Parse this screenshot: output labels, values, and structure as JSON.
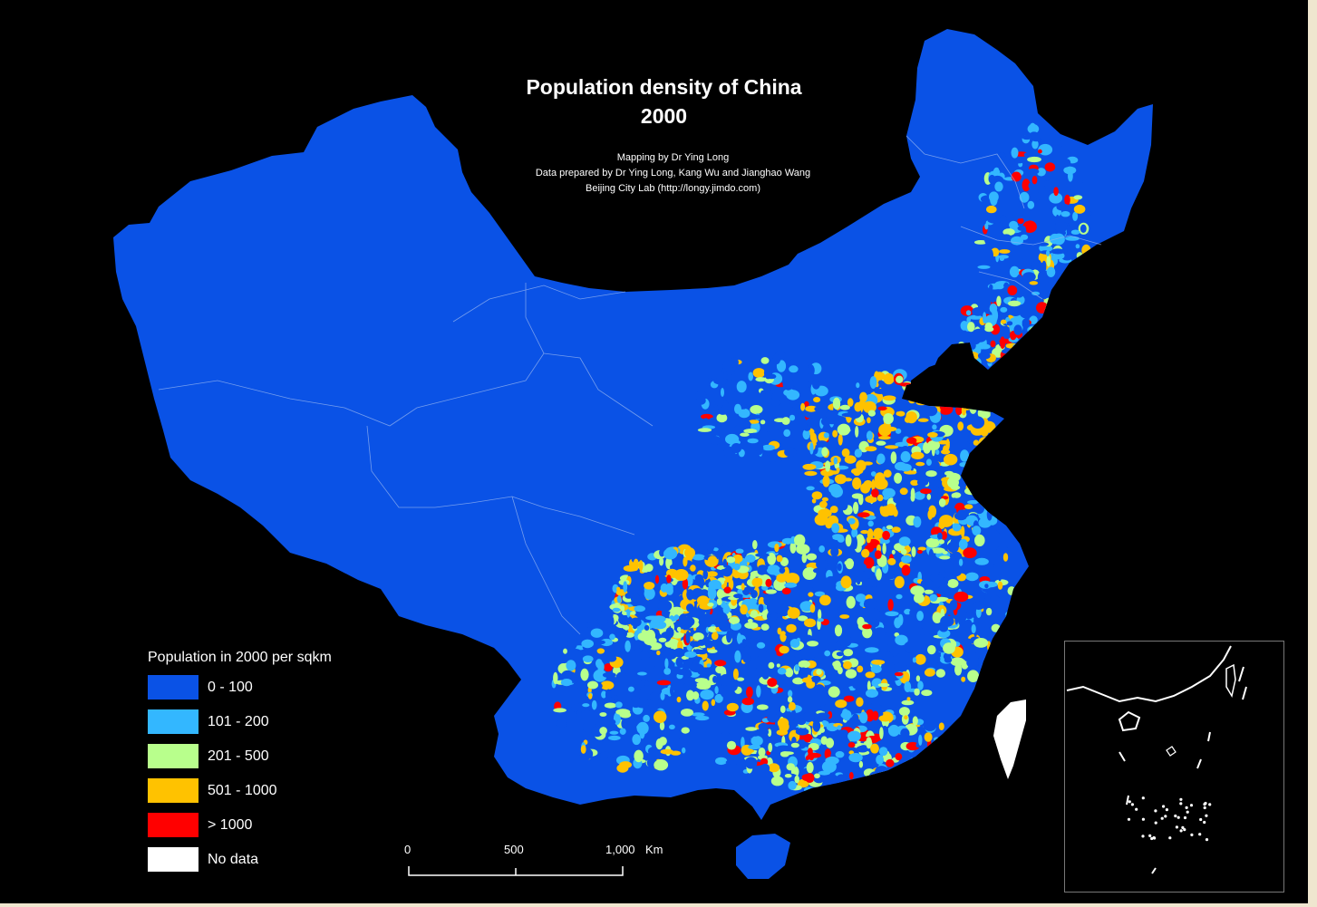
{
  "map": {
    "title_line1": "Population density of China",
    "title_line2": "2000",
    "credits": [
      "Mapping by Dr Ying Long",
      "Data prepared by Dr Ying Long, Kang Wu and Jianghao Wang",
      "Beijing City Lab (http://longy.jimdo.com)"
    ]
  },
  "legend": {
    "title": "Population in 2000 per sqkm",
    "items": [
      {
        "label": "0 - 100",
        "color": "#0a52e6"
      },
      {
        "label": "101 - 200",
        "color": "#33b7ff"
      },
      {
        "label": "201 - 500",
        "color": "#b8ff8c"
      },
      {
        "label": "501 - 1000",
        "color": "#ffc200"
      },
      {
        "label": "> 1000",
        "color": "#ff0000"
      },
      {
        "label": "No data",
        "color": "#ffffff"
      }
    ]
  },
  "scale": {
    "labels": [
      "0",
      "500",
      "1,000",
      "Km"
    ]
  },
  "colors": {
    "background": "#000000",
    "page": "#efe6cf",
    "land": "#0a52e6",
    "boundary": "#8fb0f0"
  }
}
